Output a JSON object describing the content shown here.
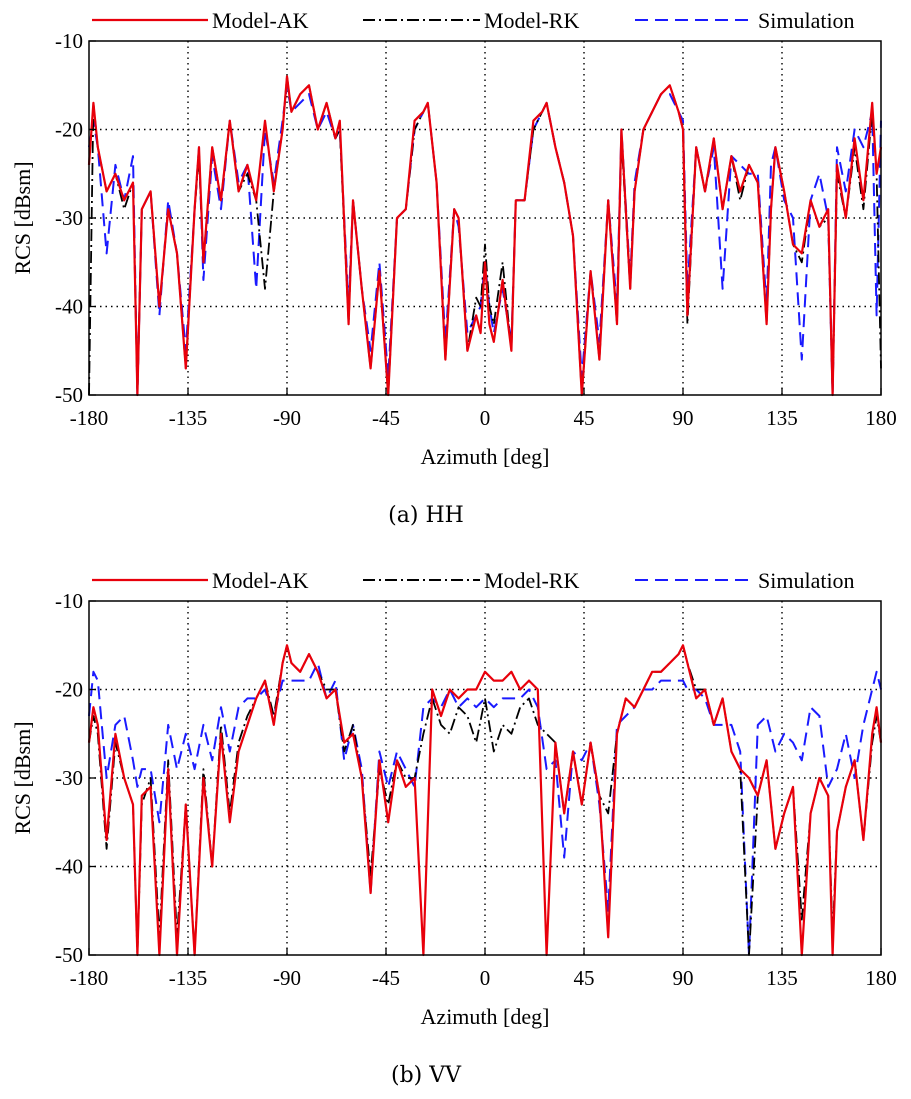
{
  "colors": {
    "model_ak": "#e8000b",
    "model_rk": "#000000",
    "simulation": "#1a1aff",
    "grid": "#000000"
  },
  "chart_data": [
    {
      "type": "line",
      "caption": "(a) HH",
      "xlabel": "Azimuth [deg]",
      "ylabel": "RCS [dBsm]",
      "xlim": [
        -180,
        180
      ],
      "ylim": [
        -50,
        -10
      ],
      "xticks": [
        -180,
        -135,
        -90,
        -45,
        0,
        45,
        90,
        135,
        180
      ],
      "yticks": [
        -10,
        -20,
        -30,
        -40,
        -50
      ],
      "grid": true,
      "legend_position": "top",
      "x": [
        -180,
        -178,
        -176,
        -172,
        -168,
        -164,
        -160,
        -158,
        -156,
        -152,
        -148,
        -144,
        -140,
        -136,
        -132,
        -130,
        -128,
        -124,
        -120,
        -116,
        -112,
        -108,
        -104,
        -100,
        -96,
        -92,
        -90,
        -88,
        -84,
        -80,
        -76,
        -72,
        -68,
        -66,
        -62,
        -60,
        -56,
        -52,
        -48,
        -44,
        -40,
        -36,
        -32,
        -28,
        -26,
        -22,
        -18,
        -14,
        -12,
        -8,
        -4,
        -2,
        0,
        2,
        4,
        8,
        12,
        14,
        18,
        22,
        26,
        28,
        32,
        36,
        40,
        44,
        48,
        52,
        56,
        60,
        62,
        66,
        68,
        72,
        76,
        80,
        84,
        88,
        90,
        92,
        96,
        100,
        104,
        108,
        112,
        116,
        120,
        124,
        128,
        130,
        132,
        136,
        140,
        144,
        148,
        152,
        156,
        158,
        160,
        164,
        168,
        172,
        176,
        178,
        180
      ],
      "series": [
        {
          "name": "Model-AK",
          "style": "solid",
          "values": [
            -24,
            -17,
            -22,
            -27,
            -25,
            -28,
            -26,
            -50,
            -29,
            -27,
            -40,
            -29,
            -34,
            -47,
            -29,
            -22,
            -35,
            -22,
            -28,
            -19,
            -27,
            -24,
            -28,
            -19,
            -27,
            -20,
            -14,
            -18,
            -16,
            -15,
            -20,
            -17,
            -21,
            -19,
            -42,
            -28,
            -38,
            -47,
            -36,
            -50,
            -30,
            -29,
            -19,
            -18,
            -17,
            -26,
            -46,
            -29,
            -30,
            -45,
            -41,
            -43,
            -35,
            -42,
            -44,
            -37,
            -45,
            -28,
            -28,
            -19,
            -18,
            -17,
            -22,
            -26,
            -32,
            -50,
            -36,
            -46,
            -28,
            -42,
            -20,
            -38,
            -27,
            -20,
            -18,
            -16,
            -15,
            -18,
            -20,
            -41,
            -22,
            -27,
            -21,
            -29,
            -23,
            -27,
            -24,
            -26,
            -42,
            -29,
            -22,
            -27,
            -33,
            -34,
            -28,
            -31,
            -29,
            -50,
            -24,
            -30,
            -21,
            -28,
            -17,
            -25,
            -22
          ]
        },
        {
          "name": "Model-RK",
          "style": "dashdot",
          "values": [
            -50,
            -17,
            -22,
            -27,
            -25,
            -29,
            -26,
            -50,
            -29,
            -27,
            -40,
            -29,
            -34,
            -47,
            -29,
            -23,
            -35,
            -22,
            -28,
            -19,
            -27,
            -25,
            -28,
            -38,
            -27,
            -20,
            -14,
            -18,
            -16,
            -15,
            -20,
            -17,
            -21,
            -20,
            -42,
            -28,
            -38,
            -47,
            -36,
            -50,
            -30,
            -29,
            -20,
            -18,
            -17,
            -26,
            -46,
            -29,
            -30,
            -45,
            -39,
            -40,
            -33,
            -40,
            -42,
            -35,
            -45,
            -28,
            -28,
            -20,
            -18,
            -17,
            -22,
            -26,
            -32,
            -50,
            -36,
            -46,
            -28,
            -42,
            -21,
            -38,
            -27,
            -20,
            -18,
            -16,
            -15,
            -18,
            -20,
            -42,
            -22,
            -27,
            -21,
            -29,
            -23,
            -28,
            -24,
            -26,
            -42,
            -29,
            -22,
            -27,
            -33,
            -35,
            -28,
            -31,
            -30,
            -50,
            -25,
            -30,
            -22,
            -29,
            -18,
            -25,
            -47
          ]
        },
        {
          "name": "Simulation",
          "style": "dashed",
          "values": [
            -22,
            -19,
            -22,
            -34,
            -24,
            -28,
            -23,
            -50,
            -29,
            -27,
            -41,
            -28,
            -34,
            -45,
            -29,
            -22,
            -37,
            -23,
            -29,
            -19,
            -26,
            -24,
            -38,
            -20,
            -26,
            -19,
            -15,
            -18,
            -17,
            -16,
            -20,
            -18,
            -21,
            -20,
            -40,
            -28,
            -38,
            -45,
            -35,
            -48,
            -30,
            -29,
            -20,
            -18,
            -17,
            -26,
            -44,
            -29,
            -31,
            -43,
            -41,
            -40,
            -35,
            -40,
            -43,
            -38,
            -44,
            -28,
            -28,
            -20,
            -18,
            -17,
            -22,
            -26,
            -32,
            -48,
            -36,
            -44,
            -28,
            -40,
            -20,
            -37,
            -26,
            -20,
            -18,
            -16,
            -16,
            -18,
            -19,
            -38,
            -22,
            -27,
            -22,
            -38,
            -23,
            -24,
            -25,
            -25,
            -40,
            -24,
            -22,
            -28,
            -30,
            -46,
            -28,
            -25,
            -30,
            -50,
            -22,
            -27,
            -20,
            -22,
            -18,
            -41,
            -19
          ]
        }
      ]
    },
    {
      "type": "line",
      "caption": "(b) VV",
      "xlabel": "Azimuth [deg]",
      "ylabel": "RCS [dBsm]",
      "xlim": [
        -180,
        180
      ],
      "ylim": [
        -50,
        -10
      ],
      "xticks": [
        -180,
        -135,
        -90,
        -45,
        0,
        45,
        90,
        135,
        180
      ],
      "yticks": [
        -10,
        -20,
        -30,
        -40,
        -50
      ],
      "grid": true,
      "legend_position": "top",
      "x": [
        -180,
        -178,
        -176,
        -172,
        -168,
        -164,
        -160,
        -158,
        -156,
        -152,
        -148,
        -144,
        -140,
        -136,
        -132,
        -128,
        -124,
        -120,
        -116,
        -112,
        -108,
        -104,
        -100,
        -96,
        -92,
        -90,
        -88,
        -84,
        -80,
        -76,
        -72,
        -68,
        -64,
        -60,
        -56,
        -52,
        -48,
        -44,
        -40,
        -36,
        -32,
        -28,
        -24,
        -20,
        -16,
        -12,
        -8,
        -4,
        0,
        4,
        8,
        12,
        16,
        20,
        24,
        28,
        32,
        36,
        40,
        44,
        48,
        52,
        56,
        60,
        64,
        68,
        72,
        76,
        80,
        84,
        88,
        90,
        92,
        96,
        100,
        104,
        108,
        112,
        116,
        120,
        124,
        128,
        132,
        136,
        140,
        144,
        148,
        152,
        156,
        158,
        160,
        164,
        168,
        172,
        176,
        178,
        180
      ],
      "series": [
        {
          "name": "Model-AK",
          "style": "solid",
          "values": [
            -26,
            -22,
            -24,
            -37,
            -25,
            -30,
            -33,
            -50,
            -32,
            -31,
            -50,
            -29,
            -50,
            -33,
            -50,
            -30,
            -40,
            -25,
            -35,
            -27,
            -24,
            -21,
            -19,
            -24,
            -17,
            -15,
            -17,
            -18,
            -16,
            -18,
            -21,
            -20,
            -26,
            -25,
            -30,
            -43,
            -28,
            -35,
            -28,
            -31,
            -30,
            -50,
            -20,
            -23,
            -20,
            -21,
            -20,
            -20,
            -18,
            -19,
            -19,
            -18,
            -20,
            -19,
            -20,
            -50,
            -26,
            -34,
            -27,
            -33,
            -26,
            -32,
            -48,
            -25,
            -21,
            -22,
            -20,
            -18,
            -18,
            -17,
            -16,
            -15,
            -17,
            -21,
            -20,
            -24,
            -21,
            -27,
            -29,
            -30,
            -32,
            -28,
            -38,
            -34,
            -31,
            -50,
            -34,
            -30,
            -32,
            -50,
            -36,
            -31,
            -28,
            -37,
            -25,
            -22,
            -26
          ]
        },
        {
          "name": "Model-RK",
          "style": "dashdot",
          "values": [
            -26,
            -23,
            -25,
            -38,
            -26,
            -30,
            -33,
            -50,
            -33,
            -30,
            -48,
            -28,
            -48,
            -33,
            -50,
            -29,
            -40,
            -24,
            -34,
            -26,
            -23,
            -21,
            -19,
            -23,
            -17,
            -15,
            -17,
            -18,
            -16,
            -18,
            -20,
            -20,
            -27,
            -24,
            -30,
            -41,
            -29,
            -33,
            -28,
            -30,
            -30,
            -25,
            -21,
            -24,
            -25,
            -22,
            -23,
            -26,
            -21,
            -27,
            -24,
            -25,
            -22,
            -21,
            -24,
            -25,
            -26,
            -34,
            -27,
            -33,
            -26,
            -32,
            -34,
            -25,
            -21,
            -22,
            -20,
            -18,
            -18,
            -17,
            -16,
            -15,
            -17,
            -20,
            -20,
            -24,
            -21,
            -27,
            -29,
            -50,
            -32,
            -28,
            -38,
            -34,
            -31,
            -46,
            -34,
            -30,
            -32,
            -48,
            -36,
            -31,
            -28,
            -37,
            -26,
            -23,
            -26
          ]
        },
        {
          "name": "Simulation",
          "style": "dashed",
          "values": [
            -23,
            -18,
            -19,
            -30,
            -24,
            -23,
            -28,
            -31,
            -29,
            -29,
            -35,
            -24,
            -29,
            -25,
            -29,
            -24,
            -28,
            -22,
            -27,
            -22,
            -21,
            -21,
            -20,
            -23,
            -19,
            -19,
            -19,
            -19,
            -19,
            -17,
            -21,
            -19,
            -28,
            -24,
            -29,
            -43,
            -27,
            -31,
            -27,
            -29,
            -31,
            -22,
            -21,
            -22,
            -20,
            -22,
            -21,
            -22,
            -21,
            -22,
            -21,
            -21,
            -21,
            -20,
            -22,
            -29,
            -28,
            -39,
            -27,
            -28,
            -26,
            -33,
            -45,
            -24,
            -23,
            -22,
            -20,
            -20,
            -19,
            -19,
            -19,
            -19,
            -20,
            -20,
            -21,
            -24,
            -24,
            -24,
            -27,
            -50,
            -24,
            -23,
            -27,
            -25,
            -26,
            -28,
            -22,
            -23,
            -31,
            -30,
            -29,
            -25,
            -30,
            -24,
            -20,
            -18,
            -20
          ]
        }
      ]
    }
  ]
}
